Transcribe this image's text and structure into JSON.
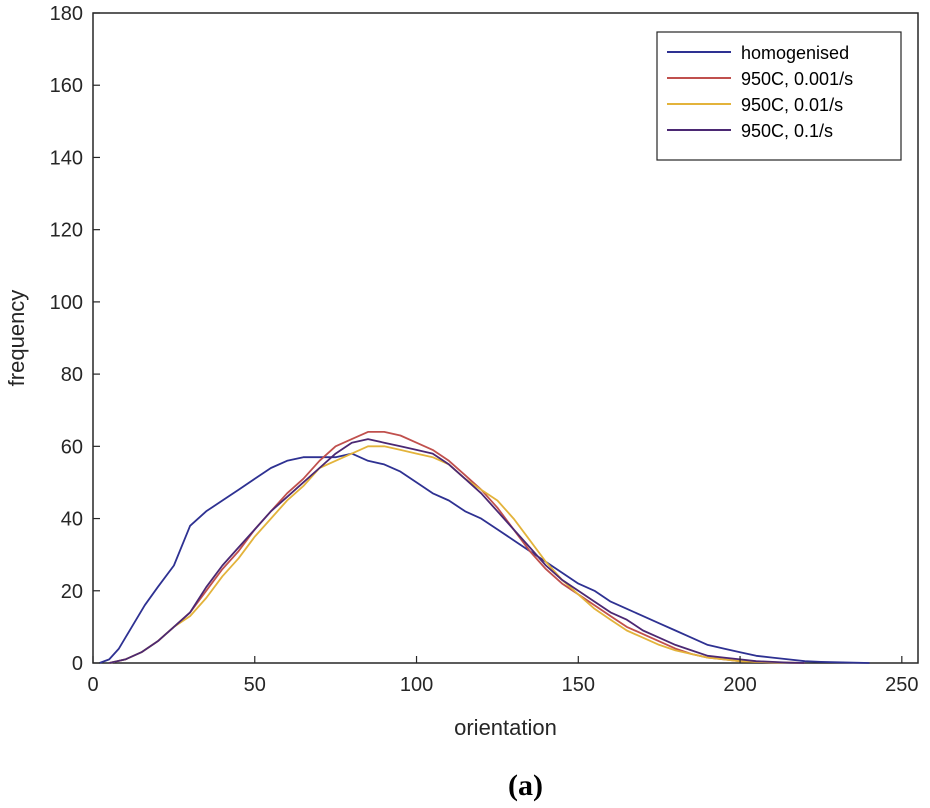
{
  "chart_data": {
    "type": "line",
    "xlabel": "orientation",
    "ylabel": "frequency",
    "xlim": [
      0,
      255
    ],
    "ylim": [
      0,
      180
    ],
    "xticks": [
      0,
      50,
      100,
      150,
      200,
      250
    ],
    "yticks": [
      0,
      20,
      40,
      60,
      80,
      100,
      120,
      140,
      160,
      180
    ],
    "grid": false,
    "legend_position": "top-right",
    "caption": "(a)",
    "series": [
      {
        "name": "homogenised",
        "color": "#2e3192",
        "x": [
          2,
          5,
          8,
          12,
          16,
          20,
          25,
          30,
          35,
          40,
          45,
          50,
          55,
          60,
          65,
          70,
          75,
          80,
          85,
          90,
          95,
          100,
          105,
          110,
          115,
          120,
          125,
          130,
          135,
          140,
          145,
          150,
          155,
          160,
          165,
          170,
          175,
          180,
          185,
          190,
          195,
          200,
          205,
          210,
          215,
          220,
          225,
          230,
          235,
          240
        ],
        "y": [
          0,
          1,
          4,
          10,
          16,
          21,
          27,
          38,
          42,
          45,
          48,
          51,
          54,
          56,
          57,
          57,
          57,
          58,
          56,
          55,
          53,
          50,
          47,
          45,
          42,
          40,
          37,
          34,
          31,
          28,
          25,
          22,
          20,
          17,
          15,
          13,
          11,
          9,
          7,
          5,
          4,
          3,
          2,
          1.5,
          1,
          0.5,
          0.3,
          0.2,
          0.1,
          0
        ]
      },
      {
        "name": "950C, 0.001/s",
        "color": "#c0504d",
        "x": [
          5,
          10,
          15,
          20,
          25,
          30,
          35,
          40,
          45,
          50,
          55,
          60,
          65,
          70,
          75,
          80,
          85,
          90,
          95,
          100,
          105,
          110,
          115,
          120,
          125,
          130,
          135,
          140,
          145,
          150,
          155,
          160,
          165,
          170,
          175,
          180,
          185,
          190,
          195,
          200,
          205,
          210,
          215,
          220
        ],
        "y": [
          0,
          1,
          3,
          6,
          10,
          14,
          20,
          26,
          31,
          37,
          42,
          47,
          51,
          56,
          60,
          62,
          64,
          64,
          63,
          61,
          59,
          56,
          52,
          48,
          43,
          37,
          31,
          26,
          22,
          19,
          16,
          13,
          10,
          8,
          6,
          4,
          2.5,
          1.5,
          1,
          0.5,
          0.3,
          0.2,
          0.1,
          0
        ]
      },
      {
        "name": "950C, 0.01/s",
        "color": "#e3b33b",
        "x": [
          5,
          10,
          15,
          20,
          25,
          30,
          35,
          40,
          45,
          50,
          55,
          60,
          65,
          70,
          75,
          80,
          85,
          90,
          95,
          100,
          105,
          110,
          115,
          120,
          125,
          130,
          135,
          140,
          145,
          150,
          155,
          160,
          165,
          170,
          175,
          180,
          185,
          190,
          195,
          200,
          205,
          210,
          215,
          220
        ],
        "y": [
          0,
          1,
          3,
          6,
          10,
          13,
          18,
          24,
          29,
          35,
          40,
          45,
          49,
          54,
          56,
          58,
          60,
          60,
          59,
          58,
          57,
          55,
          51,
          48,
          45,
          40,
          34,
          28,
          23,
          19,
          15,
          12,
          9,
          7,
          5,
          3.5,
          2.5,
          1.5,
          1,
          0.5,
          0.3,
          0.2,
          0.1,
          0
        ]
      },
      {
        "name": "950C, 0.1/s",
        "color": "#4b2873",
        "x": [
          5,
          10,
          15,
          20,
          25,
          30,
          35,
          40,
          45,
          50,
          55,
          60,
          65,
          70,
          75,
          80,
          85,
          90,
          95,
          100,
          105,
          110,
          115,
          120,
          125,
          130,
          135,
          140,
          145,
          150,
          155,
          160,
          165,
          170,
          175,
          180,
          185,
          190,
          195,
          200,
          205,
          210,
          215,
          220
        ],
        "y": [
          0,
          1,
          3,
          6,
          10,
          14,
          21,
          27,
          32,
          37,
          42,
          46,
          50,
          54,
          58,
          61,
          62,
          61,
          60,
          59,
          58,
          55,
          51,
          47,
          42,
          37,
          32,
          27,
          23,
          20,
          17,
          14,
          12,
          9,
          7,
          5,
          3.5,
          2,
          1.5,
          1,
          0.5,
          0.3,
          0.1,
          0
        ]
      }
    ]
  }
}
